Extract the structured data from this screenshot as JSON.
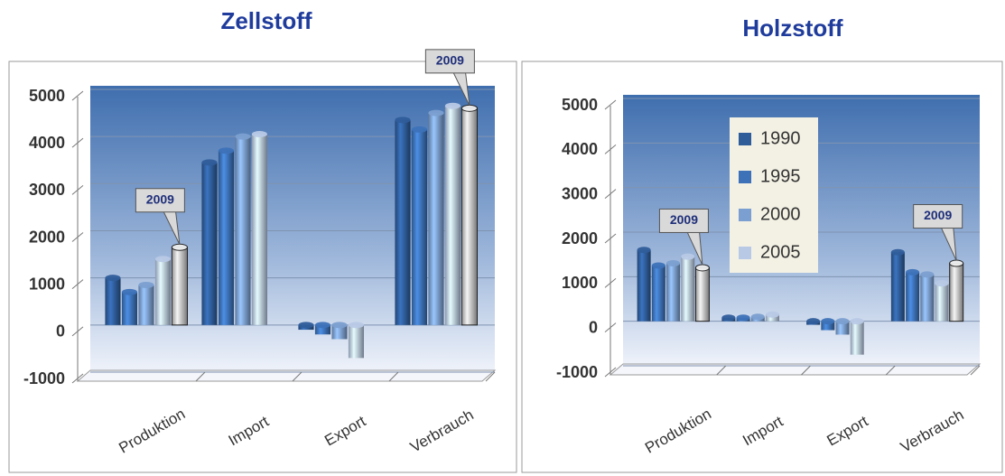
{
  "chart_data": [
    {
      "type": "bar",
      "title": "Zellstoff",
      "categories": [
        "Produktion",
        "Import",
        "Export",
        "Verbrauch"
      ],
      "series": [
        {
          "name": "1990",
          "color": "#2f5d9a",
          "values": [
            1000,
            3450,
            -100,
            4350
          ]
        },
        {
          "name": "1995",
          "color": "#3d72b8",
          "values": [
            700,
            3700,
            -200,
            4150
          ]
        },
        {
          "name": "2000",
          "color": "#7b9fd0",
          "values": [
            850,
            4000,
            -300,
            4500
          ]
        },
        {
          "name": "2005",
          "color": "#b8c9e6",
          "values": [
            1400,
            4050,
            -700,
            4650
          ]
        },
        {
          "name": "2009",
          "color": "#c4c4c4",
          "callout": true,
          "values": [
            1650,
            null,
            null,
            4600
          ]
        }
      ],
      "ylim": [
        -1000,
        5000
      ],
      "yticks": [
        -1000,
        0,
        1000,
        2000,
        3000,
        4000,
        5000
      ],
      "grid": true,
      "legend": false
    },
    {
      "type": "bar",
      "title": "Holzstoff",
      "categories": [
        "Produktion",
        "Import",
        "Export",
        "Verbrauch"
      ],
      "series": [
        {
          "name": "1990",
          "color": "#2f5d9a",
          "values": [
            1600,
            80,
            -80,
            1550
          ]
        },
        {
          "name": "1995",
          "color": "#3d72b8",
          "values": [
            1250,
            80,
            -200,
            1100
          ]
        },
        {
          "name": "2000",
          "color": "#7b9fd0",
          "values": [
            1300,
            100,
            -300,
            1050
          ]
        },
        {
          "name": "2005",
          "color": "#b8c9e6",
          "values": [
            1450,
            150,
            -750,
            850
          ]
        },
        {
          "name": "2009",
          "color": "#c4c4c4",
          "callout": true,
          "values": [
            1200,
            null,
            null,
            1300
          ]
        }
      ],
      "ylim": [
        -1000,
        5000
      ],
      "yticks": [
        -1000,
        0,
        1000,
        2000,
        3000,
        4000,
        5000
      ],
      "grid": true,
      "legend": true,
      "legend_position": "upper left"
    }
  ]
}
